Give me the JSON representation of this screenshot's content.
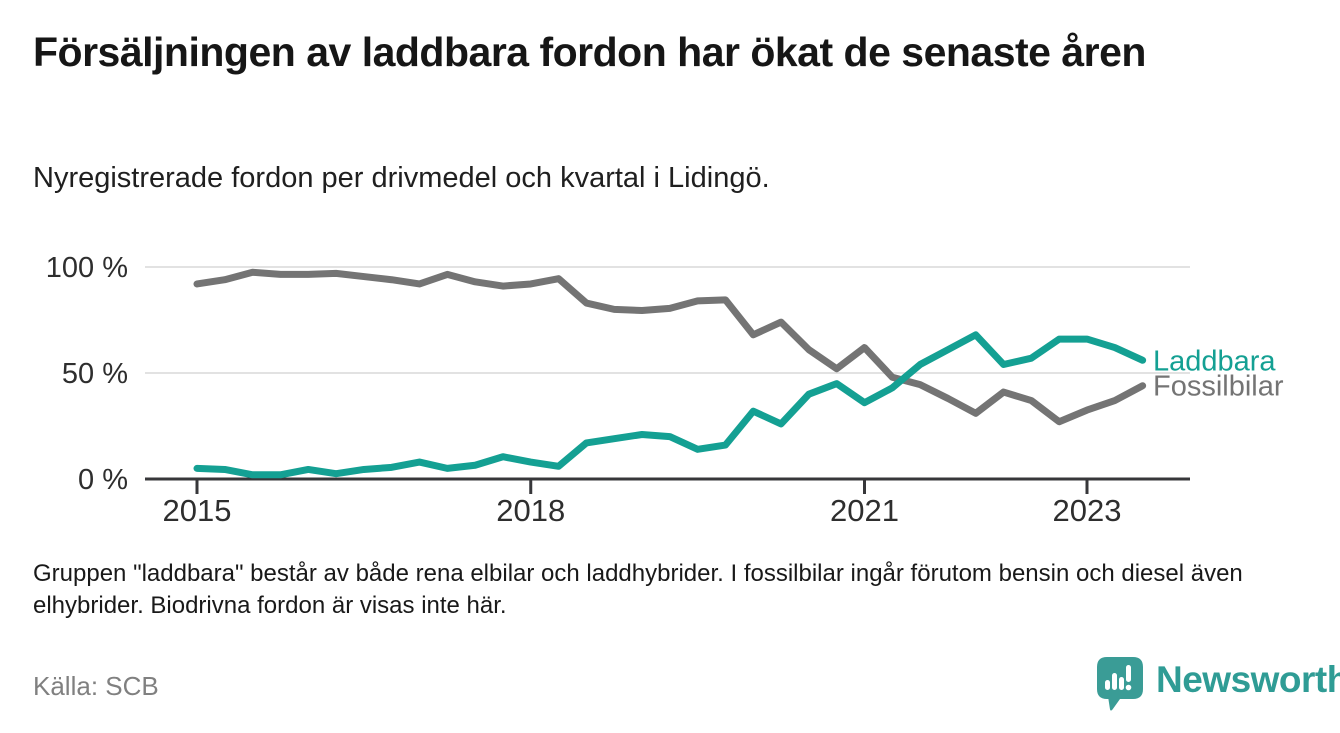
{
  "header": {
    "title": "Försäljningen av laddbara fordon har ökat de senaste åren",
    "subtitle": "Nyregistrerade fordon per drivmedel och kvartal i Lidingö."
  },
  "chart_data": {
    "type": "line",
    "title": "Försäljningen av laddbara fordon har ökat de senaste åren",
    "xlabel": "",
    "ylabel": "",
    "unit": "%",
    "ylim": [
      0,
      100
    ],
    "grid": true,
    "legend_position": "right-end-labels",
    "x": [
      "2015 K1",
      "2015 K2",
      "2015 K3",
      "2015 K4",
      "2016 K1",
      "2016 K2",
      "2016 K3",
      "2016 K4",
      "2017 K1",
      "2017 K2",
      "2017 K3",
      "2017 K4",
      "2018 K1",
      "2018 K2",
      "2018 K3",
      "2018 K4",
      "2019 K1",
      "2019 K2",
      "2019 K3",
      "2019 K4",
      "2020 K1",
      "2020 K2",
      "2020 K3",
      "2020 K4",
      "2021 K1",
      "2021 K2",
      "2021 K3",
      "2021 K4",
      "2022 K1",
      "2022 K2",
      "2022 K3",
      "2022 K4",
      "2023 K1",
      "2023 K2",
      "2023 K3"
    ],
    "x_ticks": [
      {
        "label": "2015",
        "index": 0
      },
      {
        "label": "2018",
        "index": 12
      },
      {
        "label": "2021",
        "index": 24
      },
      {
        "label": "2023",
        "index": 32
      }
    ],
    "y_ticks": [
      {
        "label": "100 %",
        "value": 100
      },
      {
        "label": "50 %",
        "value": 50
      },
      {
        "label": "0 %",
        "value": 0
      }
    ],
    "series": [
      {
        "name": "Fossilbilar",
        "color": "#747474",
        "values": [
          92,
          94,
          97.5,
          96.5,
          96.5,
          97,
          95.5,
          94,
          92,
          96.5,
          93,
          91,
          92,
          94.5,
          83,
          80,
          79.5,
          80.5,
          84,
          84.5,
          68,
          74,
          61,
          52,
          62,
          48,
          44.5,
          38,
          31,
          41,
          37,
          27,
          32.5,
          37,
          44
        ]
      },
      {
        "name": "Laddbara",
        "color": "#14a093",
        "values": [
          5,
          4.5,
          2,
          2,
          4.5,
          2.5,
          4.5,
          5.5,
          8,
          5,
          6.5,
          10.5,
          8,
          6,
          17,
          19,
          21,
          20,
          14,
          16,
          32,
          26,
          40,
          45,
          36,
          43,
          54,
          61,
          68,
          54,
          57,
          66,
          66,
          62,
          56
        ]
      }
    ]
  },
  "footer": {
    "note": "Gruppen \"laddbara\" består av både rena elbilar och laddhybrider. I fossilbilar ingår förutom bensin och diesel även elhybrider. Biodrivna fordon är visas inte här.",
    "source": "Källa: SCB",
    "brand": "Newsworthy"
  },
  "colors": {
    "accent_teal": "#14a093",
    "line_gray": "#747474",
    "gridline": "#e2e2e2",
    "axis": "#37373a",
    "axis_text": "#2e2e2e",
    "brand_teal": "#2f9c95",
    "logo_bubble": "#3a9c96"
  }
}
